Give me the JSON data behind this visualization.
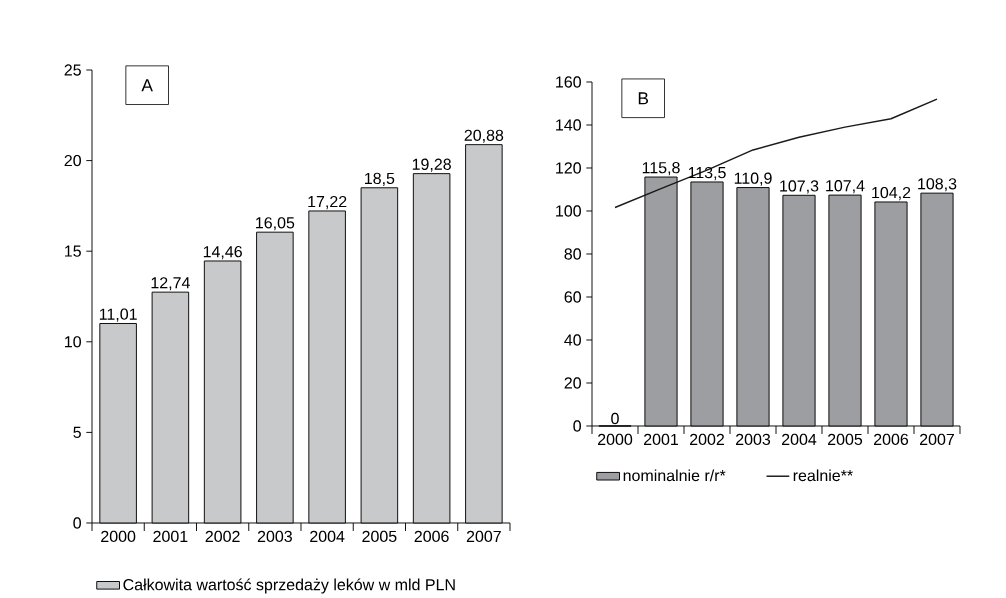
{
  "chart_data": [
    {
      "type": "bar",
      "annotations": [
        "A"
      ],
      "categories": [
        "2000",
        "2001",
        "2002",
        "2003",
        "2004",
        "2005",
        "2006",
        "2007"
      ],
      "series": [
        {
          "name": "Całkowita wartość sprzedaży leków w mld PLN",
          "color": "#c8c9cb",
          "values": [
            11.01,
            12.74,
            14.46,
            16.05,
            17.22,
            18.5,
            19.28,
            20.88
          ],
          "value_labels": [
            "11,01",
            "12,74",
            "14,46",
            "16,05",
            "17,22",
            "18,5",
            "19,28",
            "20,88"
          ]
        }
      ],
      "ylim": [
        0,
        25
      ],
      "yticks": [
        0,
        5,
        10,
        15,
        20,
        25
      ],
      "legend": "bottom",
      "grid": false
    },
    {
      "type": "bar",
      "annotations": [
        "B"
      ],
      "categories": [
        "2000",
        "2001",
        "2002",
        "2003",
        "2004",
        "2005",
        "2006",
        "2007"
      ],
      "series": [
        {
          "name": "nominalnie r/r*",
          "type": "bar",
          "color": "#9d9ea2",
          "values": [
            0,
            115.8,
            113.5,
            110.9,
            107.3,
            107.4,
            104.2,
            108.3
          ],
          "value_labels": [
            "0",
            "115,8",
            "113,5",
            "110,9",
            "107,3",
            "107,4",
            "104,2",
            "108,3"
          ]
        },
        {
          "name": "realnie**",
          "type": "line",
          "color": "#1a1a1a",
          "values": [
            101.6,
            110.4,
            119,
            128.4,
            134.3,
            139,
            142.9,
            152
          ]
        }
      ],
      "ylim": [
        0,
        160
      ],
      "yticks": [
        0,
        20,
        40,
        60,
        80,
        100,
        120,
        140,
        160
      ],
      "legend": "bottom",
      "grid": false
    }
  ]
}
